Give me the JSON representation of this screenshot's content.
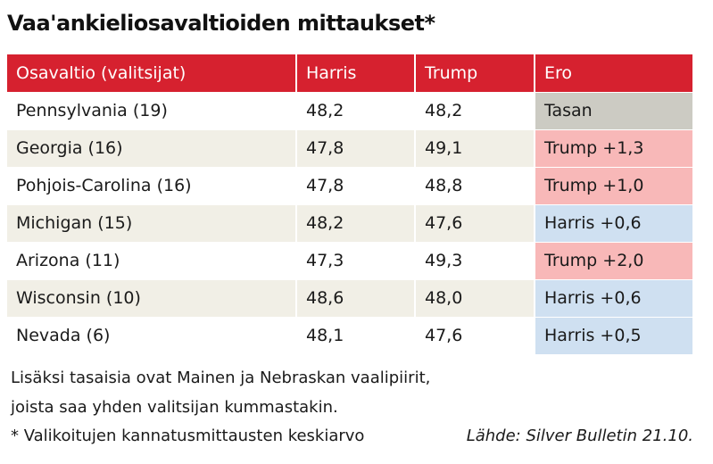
{
  "title": "Vaa'ankieliosavaltioiden mittaukset*",
  "table": {
    "headers": [
      "Osavaltio (valitsijat)",
      "Harris",
      "Trump",
      "Ero"
    ],
    "rows": [
      {
        "state": "Pennsylvania (19)",
        "harris": "48,2",
        "trump": "48,2",
        "ero": "Tasan",
        "lean": "tie"
      },
      {
        "state": "Georgia (16)",
        "harris": "47,8",
        "trump": "49,1",
        "ero": "Trump +1,3",
        "lean": "trump"
      },
      {
        "state": "Pohjois-Carolina (16)",
        "harris": "47,8",
        "trump": "48,8",
        "ero": "Trump +1,0",
        "lean": "trump"
      },
      {
        "state": "Michigan (15)",
        "harris": "48,2",
        "trump": "47,6",
        "ero": "Harris +0,6",
        "lean": "harris"
      },
      {
        "state": "Arizona (11)",
        "harris": "47,3",
        "trump": "49,3",
        "ero": "Trump +2,0",
        "lean": "trump"
      },
      {
        "state": "Wisconsin (10)",
        "harris": "48,6",
        "trump": "48,0",
        "ero": "Harris +0,6",
        "lean": "harris"
      },
      {
        "state": "Nevada (6)",
        "harris": "48,1",
        "trump": "47,6",
        "ero": "Harris +0,5",
        "lean": "harris"
      }
    ]
  },
  "notes": {
    "line1": "Lisäksi tasaisia ovat Mainen ja Nebraskan vaalipiirit,",
    "line2": "joista saa yhden valitsijan kummastakin.",
    "line3": "* Valikoitujen kannatusmittausten keskiarvo"
  },
  "source": "Lähde: Silver Bulletin 21.10.",
  "colors": {
    "header_red": "#d6212f",
    "tie_grey": "#cccbc3",
    "trump_pink": "#f8b8b8",
    "harris_blue": "#cfe0f1",
    "stripe_beige": "#f1efe6"
  }
}
